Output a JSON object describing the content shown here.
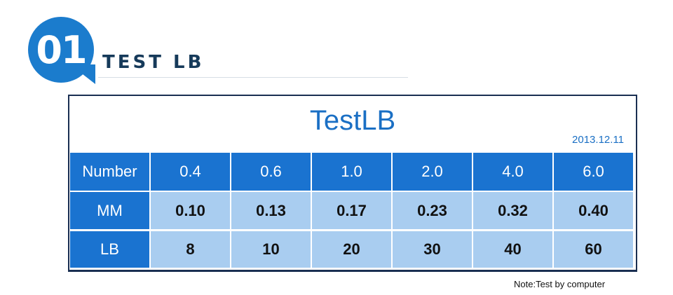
{
  "header": {
    "badge": "01",
    "title": "TEST LB"
  },
  "table": {
    "title": "TestLB",
    "date": "2013.12.11",
    "rows": [
      [
        "Number",
        "0.4",
        "0.6",
        "1.0",
        "2.0",
        "4.0",
        "6.0"
      ],
      [
        "MM",
        "0.10",
        "0.13",
        "0.17",
        "0.23",
        "0.32",
        "0.40"
      ],
      [
        "LB",
        "8",
        "10",
        "20",
        "30",
        "40",
        "60"
      ]
    ]
  },
  "note": "Note:Test by computer"
}
